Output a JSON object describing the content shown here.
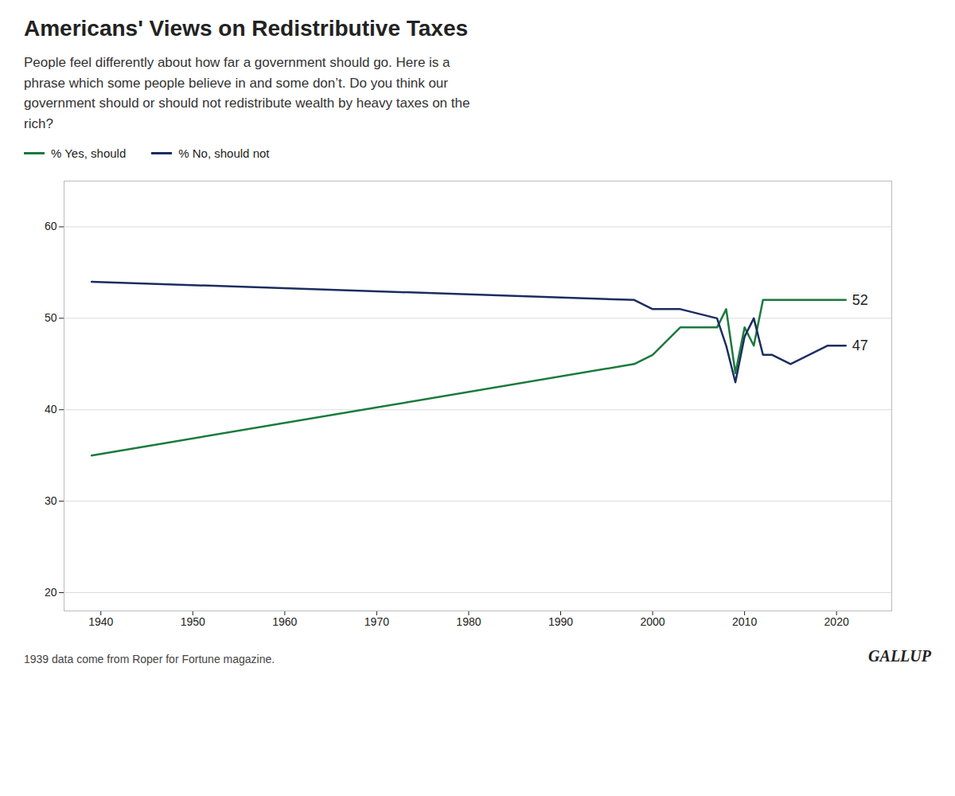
{
  "chart_data": {
    "type": "line",
    "title": "Americans' Views on Redistributive Taxes",
    "subtitle": "People feel differently about how far a government should go. Here is a\nphrase which some people believe in and some don’t. Do you think our\ngovernment should or should not redistribute wealth by heavy taxes on the\nrich?",
    "footnote": "1939 data come from Roper for Fortune magazine.",
    "credit": "GALLUP",
    "x": [
      1939,
      1998,
      2000,
      2003,
      2007,
      2008,
      2009,
      2010,
      2011,
      2012,
      2013,
      2015,
      2019,
      2021
    ],
    "series": [
      {
        "name": "% Yes, should",
        "color": "#1a7a3c",
        "values": [
          35,
          45,
          46,
          49,
          49,
          51,
          44,
          49,
          47,
          52,
          52,
          52,
          52,
          52
        ],
        "end_label": 52
      },
      {
        "name": "% No, should not",
        "color": "#1b2d60",
        "values": [
          54,
          52,
          51,
          51,
          50,
          47,
          43,
          48,
          50,
          46,
          46,
          45,
          47,
          47
        ],
        "end_label": 47
      }
    ],
    "xlim": [
      1936,
      2026
    ],
    "xticks": [
      1940,
      1950,
      1960,
      1970,
      1980,
      1990,
      2000,
      2010,
      2020
    ],
    "ylim": [
      18,
      65
    ],
    "yticks": [
      20,
      30,
      40,
      50,
      60
    ],
    "grid": "y"
  }
}
